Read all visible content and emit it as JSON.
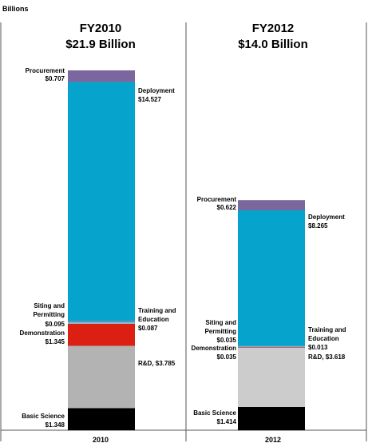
{
  "chart_data": {
    "type": "bar",
    "stacked": true,
    "unit_label": "Billions",
    "categories": [
      "2010",
      "2012"
    ],
    "panels": [
      {
        "category": "2010",
        "title": "FY2010",
        "total_label": "$21.9 Billion",
        "segments": [
          {
            "name": "Basic Science",
            "value": 1.348,
            "value_label": "$1.348",
            "color": "#000000"
          },
          {
            "name": "R&D",
            "value": 3.785,
            "value_label": "R&D, $3.785",
            "color": "#b3b3b3"
          },
          {
            "name": "Demonstration",
            "value": 1.345,
            "value_label": "$1.345",
            "color": "#dc1f13"
          },
          {
            "name": "Training and Education",
            "value": 0.087,
            "value_label": "$0.087",
            "color": "#7fbcd6"
          },
          {
            "name": "Siting and Permitting",
            "value": 0.095,
            "value_label": "$0.095",
            "color": "#5a8fb8"
          },
          {
            "name": "Deployment",
            "value": 14.527,
            "value_label": "$14.527",
            "color": "#06a4cc"
          },
          {
            "name": "Procurement",
            "value": 0.707,
            "value_label": "$0.707",
            "color": "#7b679e"
          }
        ]
      },
      {
        "category": "2012",
        "title": "FY2012",
        "total_label": "$14.0 Billion",
        "segments": [
          {
            "name": "Basic Science",
            "value": 1.414,
            "value_label": "$1.414",
            "color": "#000000"
          },
          {
            "name": "R&D",
            "value": 3.618,
            "value_label": "R&D, $3.618",
            "color": "#cccccc"
          },
          {
            "name": "Demonstration",
            "value": 0.035,
            "value_label": "$0.035",
            "color": "#dc1f13"
          },
          {
            "name": "Siting and Permitting",
            "value": 0.035,
            "value_label": "$0.035",
            "color": "#5a8fb8"
          },
          {
            "name": "Training and Education",
            "value": 0.013,
            "value_label": "$0.013",
            "color": "#7fbcd6"
          },
          {
            "name": "Deployment",
            "value": 8.265,
            "value_label": "$8.265",
            "color": "#06a4cc"
          },
          {
            "name": "Procurement",
            "value": 0.622,
            "value_label": "$0.622",
            "color": "#7b679e"
          }
        ]
      }
    ]
  }
}
